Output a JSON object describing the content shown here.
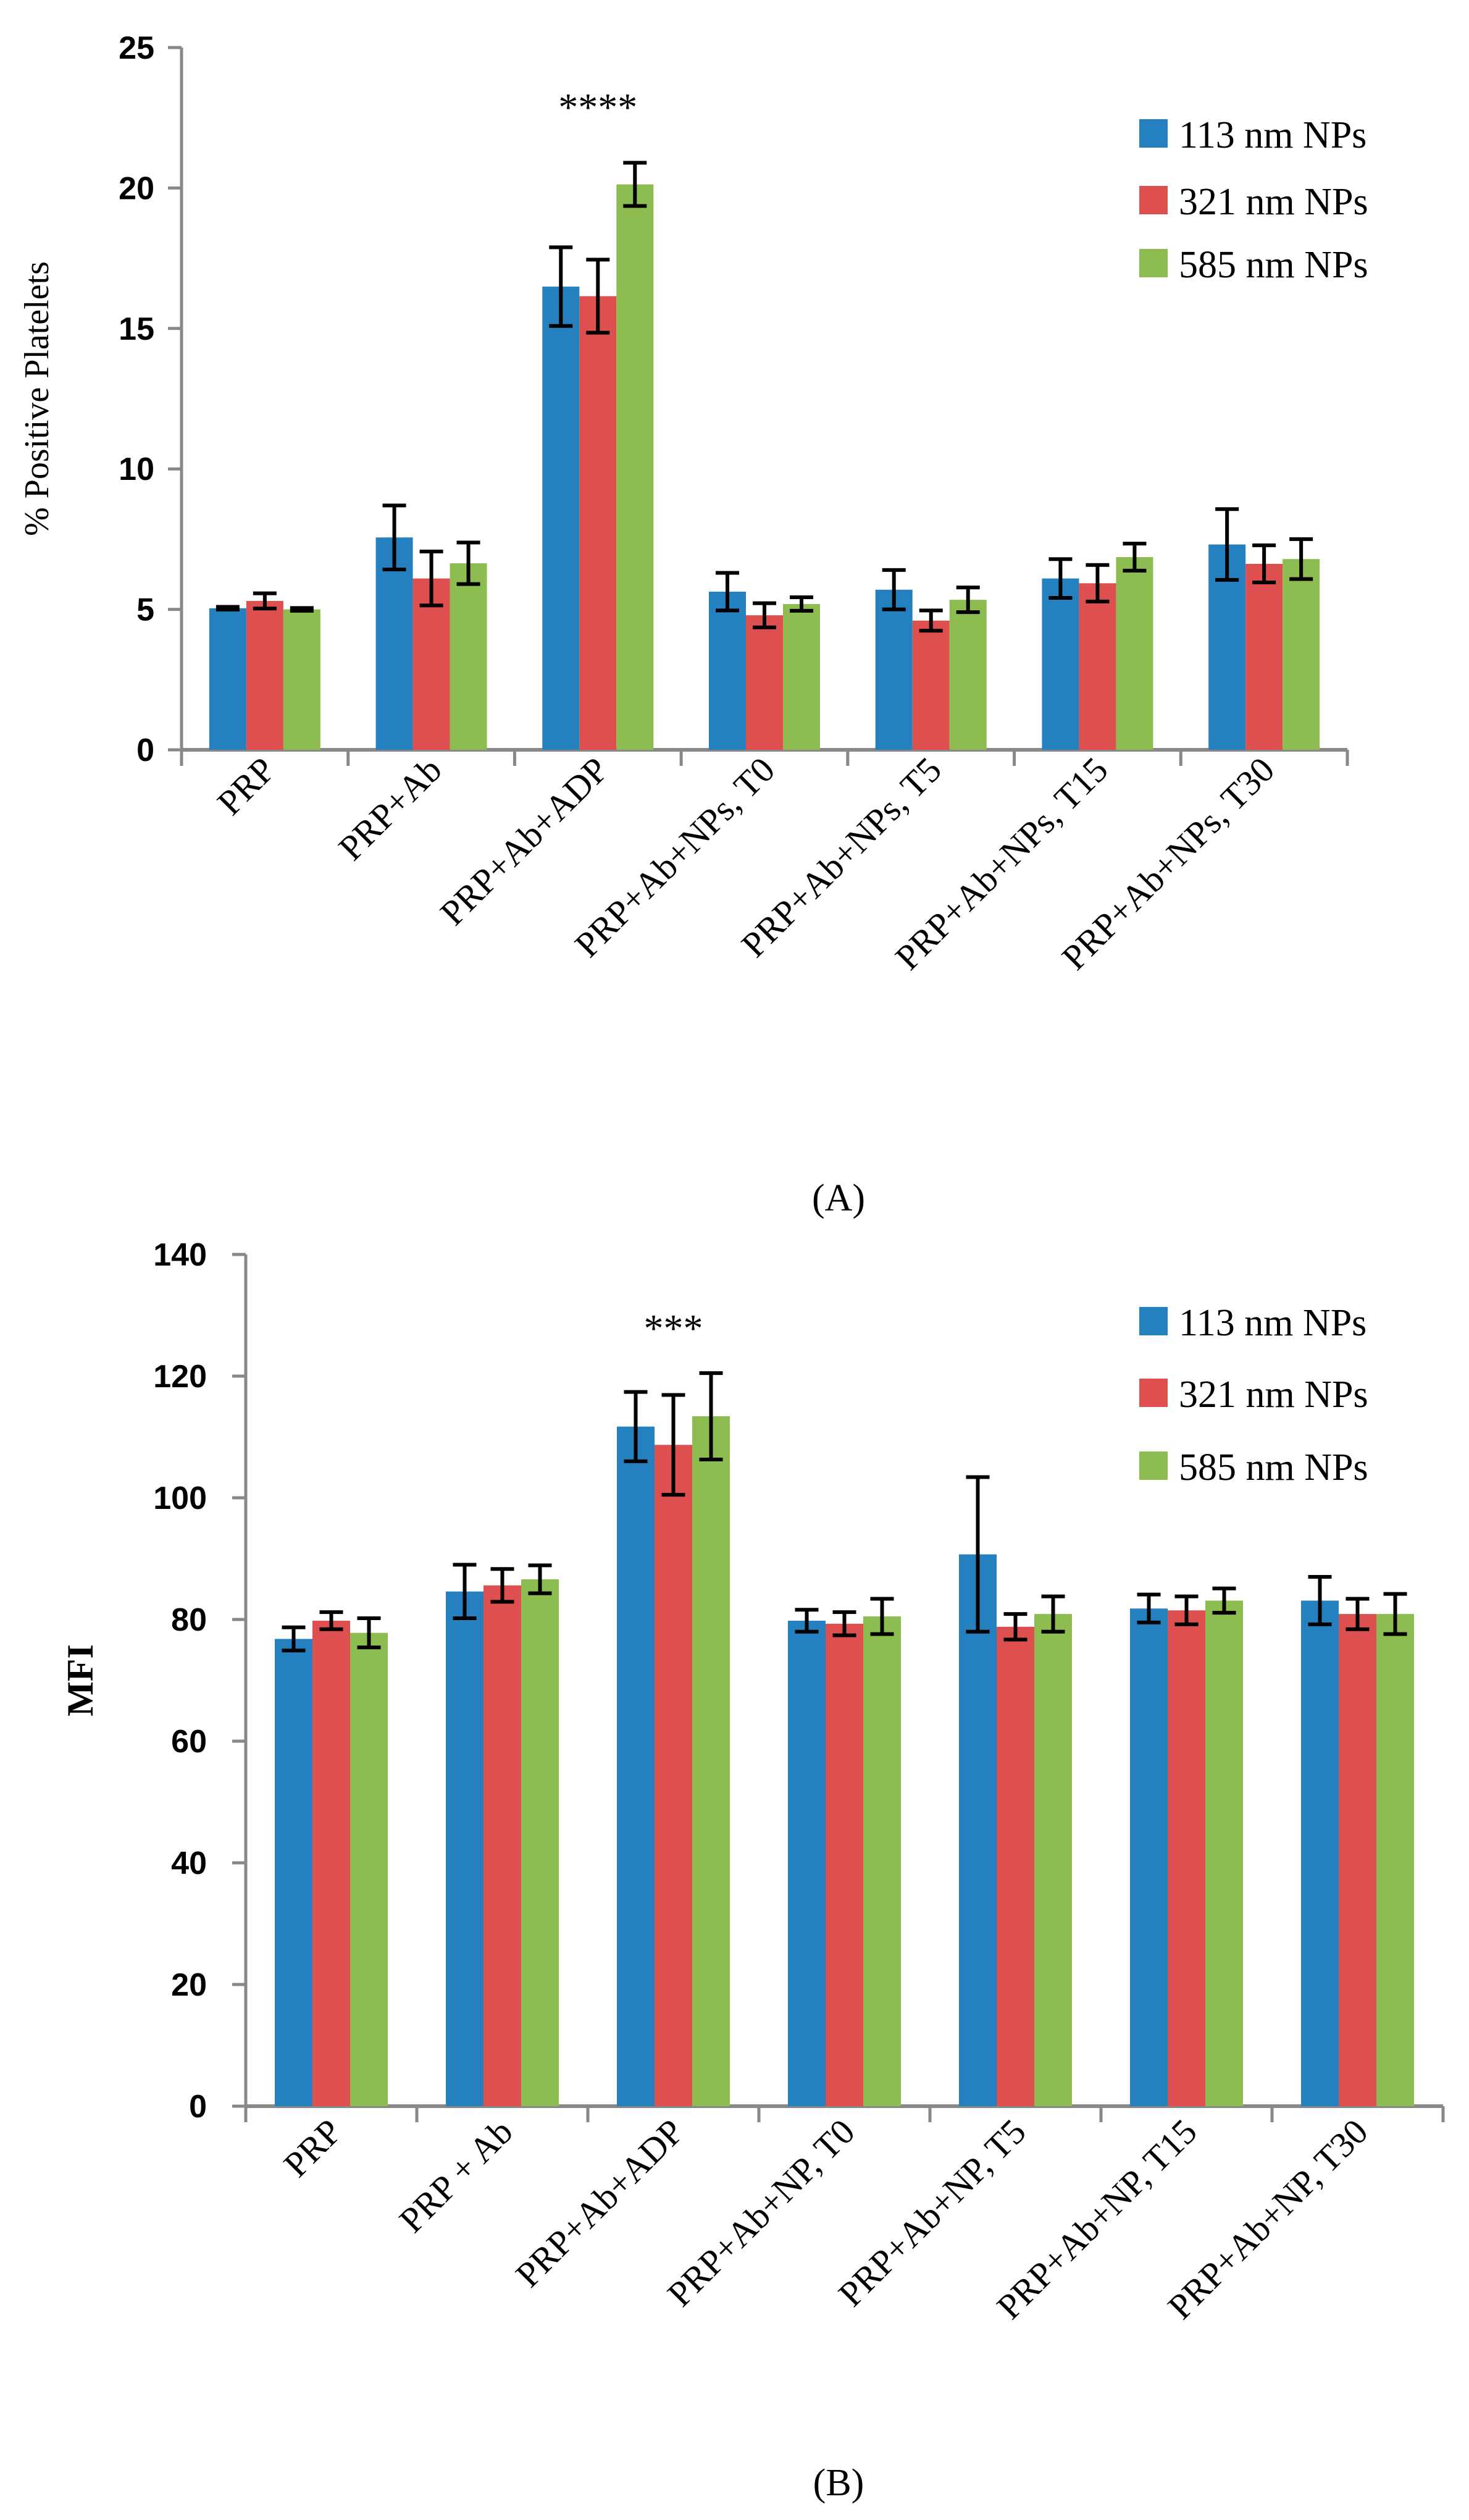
{
  "colors": {
    "s113": "#2580BF",
    "s321": "#DE504F",
    "s585": "#8DBC51",
    "axis": "#888888",
    "error": "#000000"
  },
  "chart_data": [
    {
      "type": "bar",
      "panel_label": "(A)",
      "panel_letter": "A",
      "title": "",
      "xlabel": "",
      "ylabel": "% Positive Platelets",
      "ylim": [
        0,
        25
      ],
      "yticks": [
        "0",
        "5",
        "10",
        "15",
        "20",
        "25"
      ],
      "ytick_values": [
        0,
        5,
        10,
        15,
        20,
        25
      ],
      "grid": false,
      "legend_position": "top-right",
      "categories": [
        "PRP",
        "PRP+Ab",
        "PRP+Ab+ADP",
        "PRP+Ab+NPs, T0",
        "PRP+Ab+NPs, T5",
        "PRP+Ab+NPs, T15",
        "PRP+Ab+NPs, T30"
      ],
      "annotation": {
        "text": "****",
        "category_index": 2
      },
      "series": [
        {
          "name": "113 nm NPs",
          "color_key": "s113",
          "values": [
            5.04,
            7.56,
            16.49,
            5.63,
            5.7,
            6.1,
            7.31
          ],
          "errors": [
            0.05,
            1.14,
            1.4,
            0.67,
            0.7,
            0.69,
            1.26
          ]
        },
        {
          "name": "321 nm NPs",
          "color_key": "s321",
          "values": [
            5.3,
            6.1,
            16.15,
            4.79,
            4.6,
            5.93,
            6.62
          ],
          "errors": [
            0.27,
            0.96,
            1.3,
            0.43,
            0.36,
            0.65,
            0.66
          ]
        },
        {
          "name": "585 nm NPs",
          "color_key": "s585",
          "values": [
            5.0,
            6.64,
            20.13,
            5.19,
            5.34,
            6.86,
            6.79
          ],
          "errors": [
            0.05,
            0.74,
            0.77,
            0.24,
            0.44,
            0.48,
            0.71
          ]
        }
      ]
    },
    {
      "type": "bar",
      "panel_label": "(B)",
      "panel_letter": "B",
      "title": "",
      "xlabel": "",
      "ylabel": "MFI",
      "ylim": [
        0,
        140
      ],
      "yticks": [
        "0",
        "20",
        "40",
        "60",
        "80",
        "100",
        "120",
        "140"
      ],
      "ytick_values": [
        0,
        20,
        40,
        60,
        80,
        100,
        120,
        140
      ],
      "grid": false,
      "legend_position": "top-right",
      "categories": [
        "PRP",
        "PRP + Ab",
        "PRP+Ab+ADP",
        "PRP+Ab+NP, T0",
        "PRP+Ab+NP, T5",
        "PRP+Ab+NP, T15",
        "PRP+Ab+NP, T30"
      ],
      "annotation": {
        "text": "***",
        "category_index": 2
      },
      "series": [
        {
          "name": "113 nm NPs",
          "color_key": "s113",
          "values": [
            76.8,
            84.6,
            111.7,
            79.8,
            90.7,
            81.8,
            83.1
          ],
          "errors": [
            1.9,
            4.4,
            5.7,
            1.8,
            12.7,
            2.3,
            3.9
          ]
        },
        {
          "name": "321 nm NPs",
          "color_key": "s321",
          "values": [
            79.8,
            85.6,
            108.7,
            79.3,
            78.8,
            81.5,
            80.9
          ],
          "errors": [
            1.4,
            2.7,
            8.2,
            1.9,
            2.1,
            2.3,
            2.5
          ]
        },
        {
          "name": "585 nm NPs",
          "color_key": "s585",
          "values": [
            77.8,
            86.6,
            113.4,
            80.5,
            80.9,
            83.1,
            80.9
          ],
          "errors": [
            2.4,
            2.3,
            7.1,
            2.9,
            2.9,
            2.0,
            3.3
          ]
        }
      ]
    }
  ]
}
